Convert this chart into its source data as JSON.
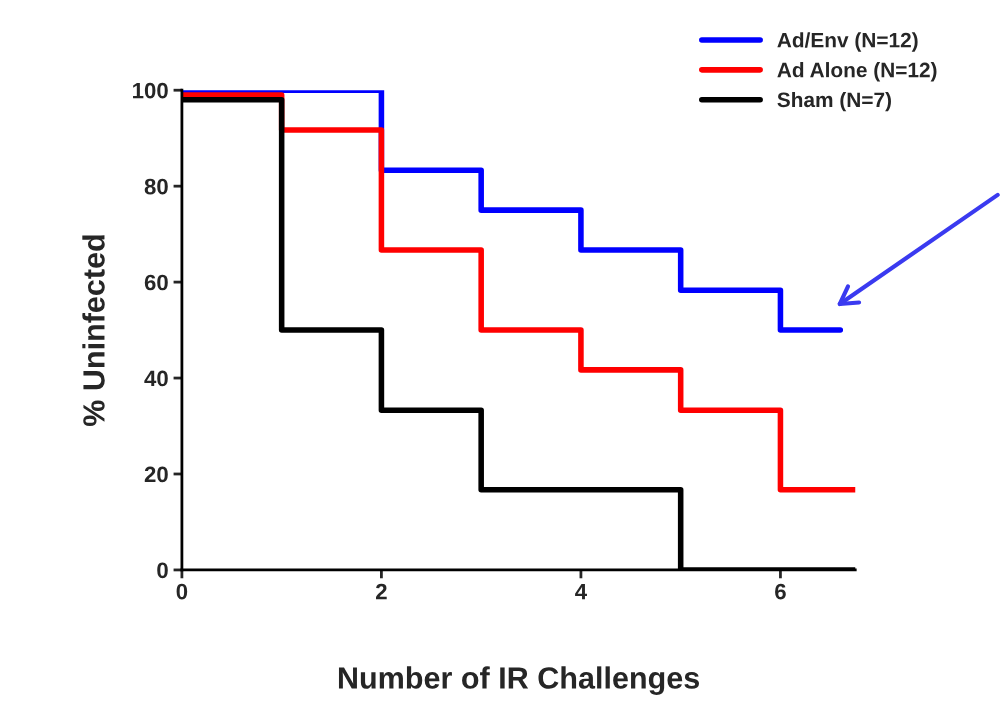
{
  "chart_data": {
    "type": "step",
    "xlabel": "Number of IR Challenges",
    "ylabel": "% Uninfected",
    "xlim": [
      0,
      6.75
    ],
    "xticks": [
      0,
      2,
      4,
      6
    ],
    "ylim": [
      0,
      100
    ],
    "yticks": [
      0,
      20,
      40,
      60,
      80,
      100
    ],
    "grid": false,
    "legend": "top right",
    "marker": "none",
    "line_style": "solid",
    "series": [
      {
        "name": "Ad/Env (N=12)",
        "color": "#0000ff",
        "x": [
          0,
          1,
          2,
          3,
          4,
          5,
          6,
          6.6
        ],
        "values": [
          100,
          100,
          83.3,
          75,
          66.7,
          58.3,
          50,
          50
        ]
      },
      {
        "name": "Ad Alone (N=12)",
        "color": "#ff0000",
        "x": [
          0,
          1,
          2,
          3,
          4,
          5,
          6,
          6.75
        ],
        "values": [
          99,
          91.7,
          66.7,
          50,
          41.7,
          33.3,
          16.7,
          16.7
        ]
      },
      {
        "name": "Sham (N=7)",
        "color": "#000000",
        "x": [
          0,
          1,
          2,
          3,
          4,
          5,
          6,
          6.75
        ],
        "values": [
          98,
          50,
          33.3,
          16.7,
          16.7,
          0,
          0,
          0
        ]
      }
    ]
  }
}
